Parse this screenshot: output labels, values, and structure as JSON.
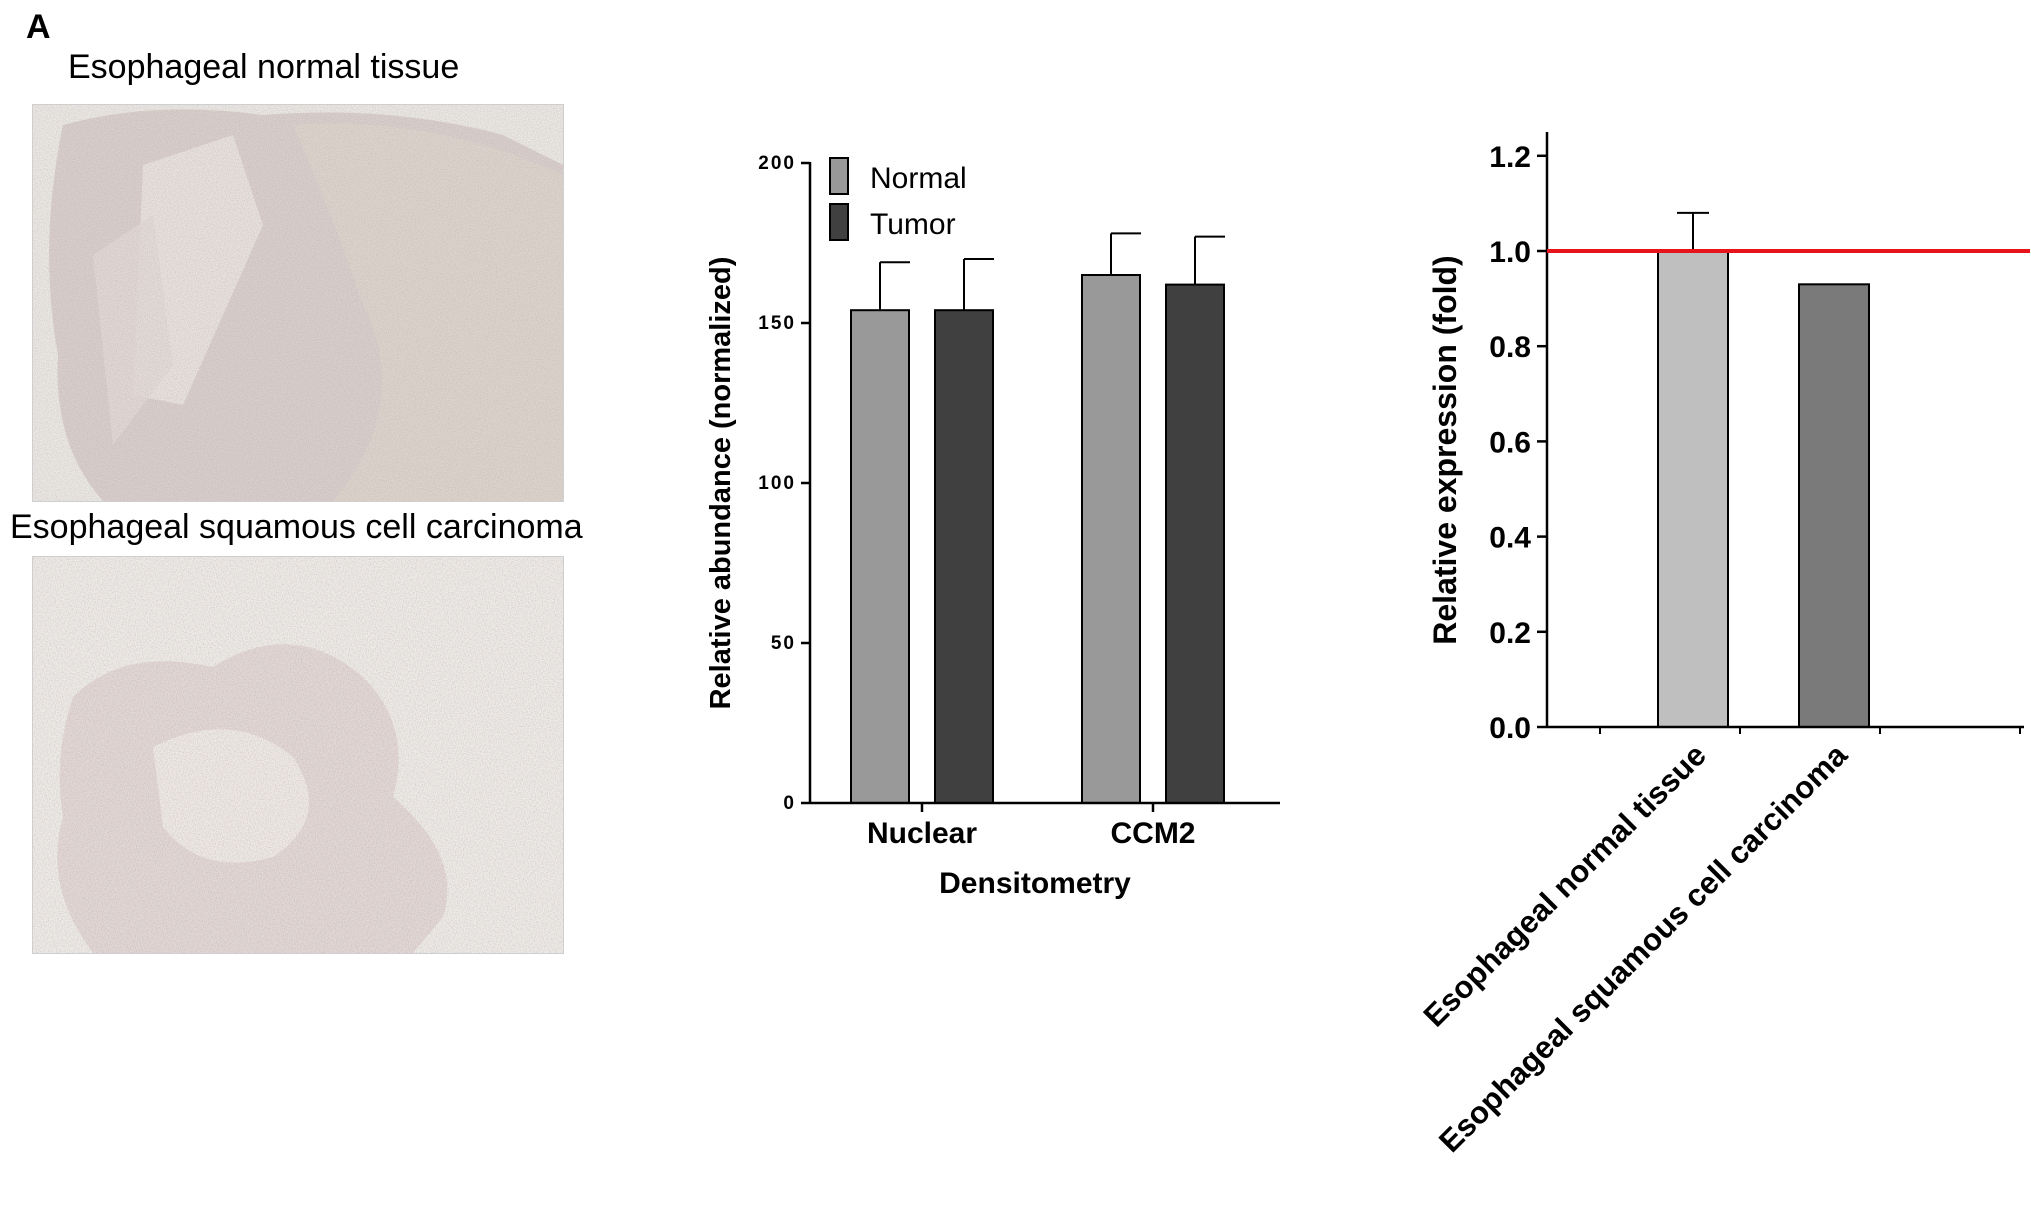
{
  "panel_label": "A",
  "images": {
    "normal_title": "Esophageal normal tissue",
    "escc_title": "Esophageal squamous cell carcinoma"
  },
  "chart_data": [
    {
      "type": "bar",
      "categories": [
        "Nuclear",
        "CCM2"
      ],
      "series": [
        {
          "name": "Normal",
          "values": [
            154,
            165
          ],
          "errors": [
            15,
            13
          ],
          "color": "#999999"
        },
        {
          "name": "Tumor",
          "values": [
            154,
            162
          ],
          "errors": [
            16,
            15
          ],
          "color": "#404040"
        }
      ],
      "xlabel": "Densitometry",
      "ylabel": "Relative abundance (normalized)",
      "ylim": [
        0,
        200
      ],
      "yticks": [
        "0",
        "50",
        "100",
        "150",
        "200"
      ],
      "legend_position": "top-left",
      "grid": false
    },
    {
      "type": "bar",
      "categories": [
        "Esophageal normal tissue",
        "Esophageal squamous cell carcinoma"
      ],
      "series": [
        {
          "values": [
            1.0,
            0.93
          ],
          "errors": [
            0.08,
            0
          ],
          "colors": [
            "#bfbfbf",
            "#7a7a7a"
          ]
        }
      ],
      "ylabel": "Relative expression (fold)",
      "ylim": [
        0,
        1.25
      ],
      "yticks": [
        "0.0",
        "0.2",
        "0.4",
        "0.6",
        "0.8",
        "1.0",
        "1.2"
      ],
      "reference_line": {
        "y": 1.0,
        "color": "#e8141c"
      },
      "grid": false
    }
  ]
}
